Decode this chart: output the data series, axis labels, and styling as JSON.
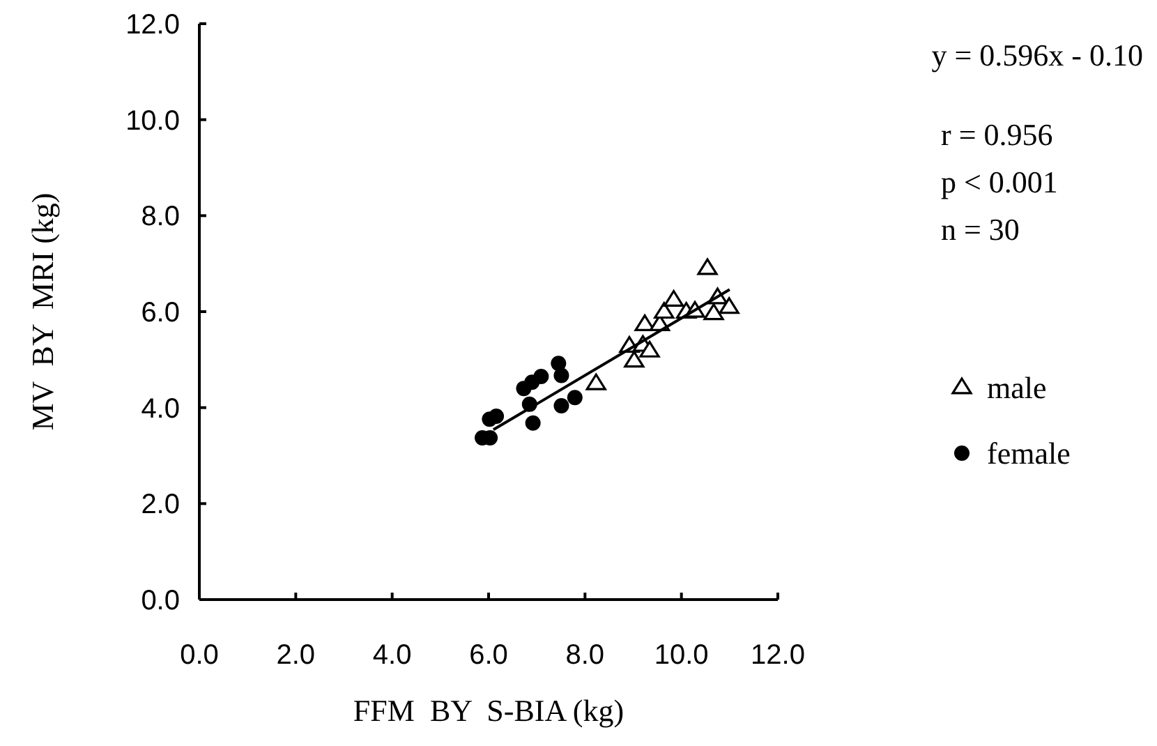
{
  "chart_data": {
    "type": "scatter",
    "xlabel": "FFM  BY  S-BIA (kg)",
    "ylabel": "MV  BY  MRI (kg)",
    "xlim": [
      0,
      12
    ],
    "ylim": [
      0,
      12
    ],
    "xticks": [
      {
        "value": 0,
        "label": "0.0"
      },
      {
        "value": 2,
        "label": "2.0"
      },
      {
        "value": 4,
        "label": "4.0"
      },
      {
        "value": 6,
        "label": "6.0"
      },
      {
        "value": 8,
        "label": "8.0"
      },
      {
        "value": 10,
        "label": "10.0"
      },
      {
        "value": 12,
        "label": "12.0"
      }
    ],
    "yticks": [
      {
        "value": 0,
        "label": "0.0"
      },
      {
        "value": 2,
        "label": "2.0"
      },
      {
        "value": 4,
        "label": "4.0"
      },
      {
        "value": 6,
        "label": "6.0"
      },
      {
        "value": 8,
        "label": "8.0"
      },
      {
        "value": 10,
        "label": "10.0"
      },
      {
        "value": 12,
        "label": "12.0"
      }
    ],
    "grid": false,
    "legend": "right",
    "annotations": [
      "y = 0.596x - 0.10",
      "r = 0.956",
      "p < 0.001",
      "n = 30"
    ],
    "series": [
      {
        "name": "male",
        "color": "#000000",
        "marker": "triangle",
        "x": [
          8.23,
          8.92,
          9.02,
          9.24,
          9.2,
          9.34,
          9.55,
          9.64,
          9.84,
          10.1,
          10.28,
          10.54,
          10.67,
          10.75,
          10.99
        ],
        "values": [
          4.5,
          5.28,
          4.97,
          5.73,
          5.3,
          5.18,
          5.73,
          5.99,
          6.24,
          5.99,
          6.01,
          6.9,
          5.96,
          6.29,
          6.09
        ]
      },
      {
        "name": "female",
        "color": "#000000",
        "marker": "circle",
        "x": [
          5.87,
          6.03,
          6.02,
          6.16,
          6.73,
          6.9,
          7.09,
          6.85,
          6.92,
          7.45,
          7.51,
          7.51,
          7.79
        ],
        "values": [
          3.37,
          3.37,
          3.76,
          3.82,
          4.4,
          4.53,
          4.65,
          4.07,
          3.68,
          4.92,
          4.67,
          4.04,
          4.21
        ]
      },
      {
        "type": "line",
        "color": "#000000",
        "marker": "none",
        "line_style": "solid",
        "x": [
          6.1,
          11.0
        ],
        "values": [
          3.54,
          6.46
        ]
      }
    ]
  }
}
